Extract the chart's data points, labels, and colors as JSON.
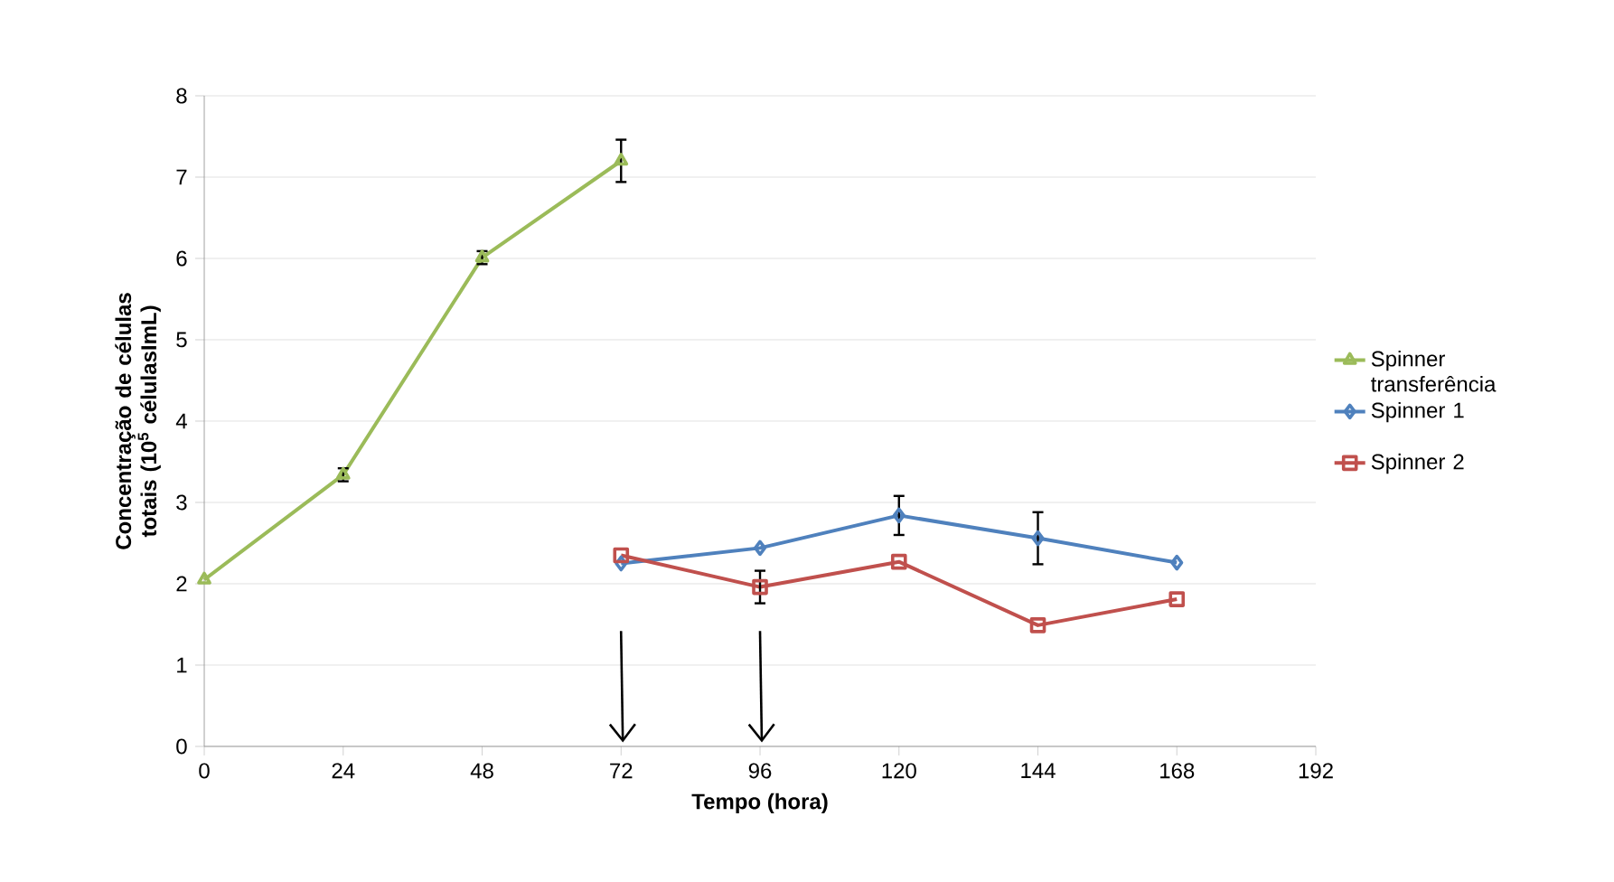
{
  "chart_data": {
    "type": "line",
    "xlabel": "Tempo (hora)",
    "ylabel": "Concentração de células totais (10$^{5}$ célulasImL)",
    "xlim": [
      0,
      192
    ],
    "xticks": [
      0,
      24,
      48,
      72,
      96,
      120,
      144,
      168,
      192
    ],
    "ylim": [
      0,
      8
    ],
    "yticks": [
      0,
      1,
      2,
      3,
      4,
      5,
      6,
      7,
      8
    ],
    "grid": "y",
    "legend": "right",
    "series": [
      {
        "name": "Spinner transferência",
        "color": "#9bbb59",
        "marker": "triangle",
        "x": [
          0,
          24,
          48,
          72
        ],
        "values": [
          2.05,
          3.34,
          6.01,
          7.2
        ],
        "errors": [
          null,
          0.08,
          0.08,
          0.26
        ]
      },
      {
        "name": "Spinner 1",
        "color": "#4f81bd",
        "marker": "diamond",
        "x": [
          72,
          96,
          120,
          144,
          168
        ],
        "values": [
          2.25,
          2.44,
          2.84,
          2.56,
          2.26
        ],
        "errors": [
          null,
          null,
          0.24,
          0.32,
          null
        ]
      },
      {
        "name": "Spinner 2",
        "color": "#c0504d",
        "marker": "square",
        "x": [
          72,
          96,
          120,
          144,
          168
        ],
        "values": [
          2.35,
          1.96,
          2.27,
          1.49,
          1.81
        ],
        "errors": [
          null,
          0.2,
          null,
          null,
          null
        ]
      }
    ]
  }
}
